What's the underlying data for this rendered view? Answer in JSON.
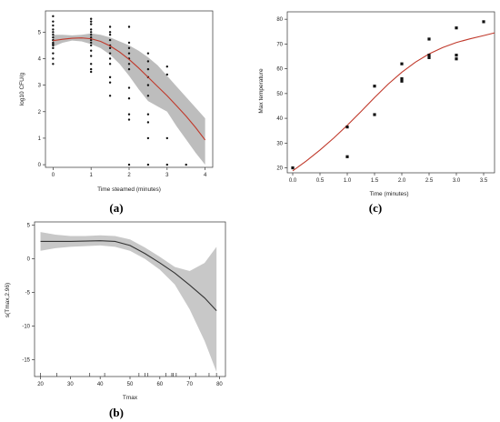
{
  "chart_data": [
    {
      "id": "a",
      "panel_label": "(a)",
      "type": "scatter",
      "xlabel": "Time steamed (minutes)",
      "ylabel": "log10 CFU/g",
      "xlim": [
        -0.2,
        4.2
      ],
      "ylim": [
        -0.1,
        5.8
      ],
      "xticks": [
        0,
        1,
        2,
        3,
        4
      ],
      "yticks": [
        0,
        1,
        2,
        3,
        4,
        5
      ],
      "box": true,
      "points": [
        [
          0,
          5.6
        ],
        [
          0,
          5.4
        ],
        [
          0,
          5.25
        ],
        [
          0,
          5.1
        ],
        [
          0,
          5.0
        ],
        [
          0,
          4.9
        ],
        [
          0,
          4.8
        ],
        [
          0,
          4.7
        ],
        [
          0,
          4.6
        ],
        [
          0,
          4.55
        ],
        [
          0,
          4.5
        ],
        [
          0,
          4.4
        ],
        [
          0,
          4.2
        ],
        [
          0,
          4.0
        ],
        [
          0,
          3.8
        ],
        [
          1,
          5.5
        ],
        [
          1,
          5.4
        ],
        [
          1,
          5.3
        ],
        [
          1,
          5.1
        ],
        [
          1,
          5.0
        ],
        [
          1,
          4.9
        ],
        [
          1,
          4.8
        ],
        [
          1,
          4.7
        ],
        [
          1,
          4.6
        ],
        [
          1,
          4.5
        ],
        [
          1,
          4.3
        ],
        [
          1,
          4.1
        ],
        [
          1,
          3.8
        ],
        [
          1,
          3.6
        ],
        [
          1,
          3.5
        ],
        [
          1.5,
          5.2
        ],
        [
          1.5,
          5.0
        ],
        [
          1.5,
          4.9
        ],
        [
          1.5,
          4.7
        ],
        [
          1.5,
          4.5
        ],
        [
          1.5,
          4.4
        ],
        [
          1.5,
          4.2
        ],
        [
          1.5,
          4.0
        ],
        [
          1.5,
          3.8
        ],
        [
          1.5,
          3.3
        ],
        [
          1.5,
          3.1
        ],
        [
          1.5,
          2.6
        ],
        [
          2,
          5.2
        ],
        [
          2,
          4.6
        ],
        [
          2,
          4.4
        ],
        [
          2,
          4.2
        ],
        [
          2,
          4.0
        ],
        [
          2,
          3.8
        ],
        [
          2,
          3.6
        ],
        [
          2,
          2.9
        ],
        [
          2,
          2.5
        ],
        [
          2,
          1.9
        ],
        [
          2,
          1.7
        ],
        [
          2,
          0.0
        ],
        [
          2.5,
          4.2
        ],
        [
          2.5,
          3.9
        ],
        [
          2.5,
          3.6
        ],
        [
          2.5,
          3.3
        ],
        [
          2.5,
          3.0
        ],
        [
          2.5,
          2.6
        ],
        [
          2.5,
          1.9
        ],
        [
          2.5,
          1.6
        ],
        [
          2.5,
          1.0
        ],
        [
          2.5,
          0.0
        ],
        [
          3,
          3.7
        ],
        [
          3,
          3.4
        ],
        [
          3,
          1.0
        ],
        [
          3,
          0.0
        ],
        [
          3.5,
          0.0
        ]
      ],
      "fit": {
        "color": "#c0392b",
        "x": [
          0,
          0.25,
          0.5,
          0.75,
          1.0,
          1.25,
          1.5,
          1.75,
          2.0,
          2.25,
          2.5,
          2.75,
          3.0,
          3.25,
          3.5,
          3.75,
          4.0
        ],
        "y": [
          4.68,
          4.73,
          4.77,
          4.78,
          4.75,
          4.65,
          4.48,
          4.25,
          3.97,
          3.65,
          3.3,
          2.95,
          2.6,
          2.22,
          1.83,
          1.4,
          0.93
        ],
        "lower": [
          4.45,
          4.6,
          4.68,
          4.65,
          4.55,
          4.4,
          4.15,
          3.8,
          3.35,
          2.85,
          2.4,
          2.2,
          2.0,
          1.45,
          0.95,
          0.45,
          0.0
        ],
        "upper": [
          4.9,
          4.9,
          4.88,
          4.9,
          4.95,
          4.9,
          4.8,
          4.65,
          4.5,
          4.3,
          4.05,
          3.75,
          3.35,
          2.95,
          2.55,
          2.15,
          1.75
        ],
        "band_color": "#bdbdbd"
      }
    },
    {
      "id": "c",
      "panel_label": "(c)",
      "type": "scatter",
      "xlabel": "Time (minutes)",
      "ylabel": "Max temperature",
      "xlim": [
        -0.1,
        3.7
      ],
      "ylim": [
        18,
        83
      ],
      "xticks": [
        0.0,
        0.5,
        1.0,
        1.5,
        2.0,
        2.5,
        3.0,
        3.5
      ],
      "xtick_labels": [
        "0.0",
        "0.5",
        "1.0",
        "1.5",
        "2.0",
        "2.5",
        "3.0",
        "3.5"
      ],
      "yticks": [
        20,
        30,
        40,
        50,
        60,
        70,
        80
      ],
      "box": true,
      "points": [
        [
          0,
          20
        ],
        [
          1,
          24.5
        ],
        [
          1,
          36.5
        ],
        [
          1.5,
          41.5
        ],
        [
          1.5,
          53
        ],
        [
          2,
          55
        ],
        [
          2,
          56
        ],
        [
          2,
          62
        ],
        [
          2.5,
          64.5
        ],
        [
          2.5,
          65.5
        ],
        [
          2.5,
          72
        ],
        [
          3,
          64
        ],
        [
          3,
          65.5
        ],
        [
          3,
          76.5
        ],
        [
          3.5,
          79
        ]
      ],
      "fit": {
        "color": "#c0392b",
        "x": [
          0,
          0.25,
          0.5,
          0.75,
          1.0,
          1.25,
          1.5,
          1.75,
          2.0,
          2.25,
          2.5,
          2.75,
          3.0,
          3.25,
          3.5,
          3.7
        ],
        "y": [
          18.8,
          22.8,
          27.2,
          32.0,
          37.2,
          42.7,
          48.4,
          53.8,
          58.6,
          62.7,
          66.0,
          68.6,
          70.6,
          72.1,
          73.4,
          74.5
        ]
      }
    },
    {
      "id": "b",
      "panel_label": "(b)",
      "type": "line",
      "xlabel": "Tmax",
      "ylabel": "s(Tmax,2.96)",
      "xlim": [
        18,
        82
      ],
      "ylim": [
        -17.5,
        5.5
      ],
      "xticks": [
        20,
        30,
        40,
        50,
        60,
        70,
        80
      ],
      "yticks": [
        -15,
        -10,
        -5,
        0,
        5
      ],
      "box": true,
      "rug": [
        20,
        25.5,
        36.5,
        41.5,
        53,
        55,
        56,
        62,
        64,
        64.5,
        65.5,
        72,
        76.5,
        79
      ],
      "fit": {
        "color": "#333333",
        "x": [
          20,
          25,
          30,
          35,
          40,
          45,
          50,
          55,
          60,
          65,
          70,
          75,
          79
        ],
        "y": [
          2.6,
          2.6,
          2.6,
          2.65,
          2.7,
          2.6,
          2.0,
          0.8,
          -0.6,
          -2.1,
          -3.9,
          -5.8,
          -7.7
        ],
        "lower": [
          1.2,
          1.6,
          1.8,
          1.9,
          2.0,
          1.8,
          1.2,
          0.0,
          -1.6,
          -3.8,
          -7.5,
          -12.2,
          -16.8
        ],
        "upper": [
          4.0,
          3.6,
          3.4,
          3.4,
          3.5,
          3.4,
          2.9,
          1.7,
          0.3,
          -1.2,
          -1.8,
          -0.6,
          1.8
        ],
        "band_color": "#c8c8c8"
      }
    }
  ]
}
